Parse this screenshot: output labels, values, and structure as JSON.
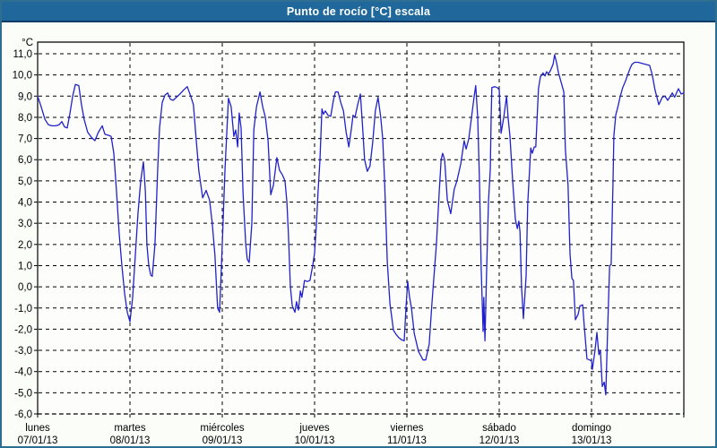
{
  "window": {
    "title": "Punto de rocío [°C] escala"
  },
  "colors": {
    "titlebar_bg": "#20689b",
    "titlebar_edge": "#0d3a66",
    "window_border": "#2e6e91",
    "window_bg": "#fbfdf9",
    "plot_bg": "#fdfefb",
    "grid": "#000000",
    "axis": "#000000",
    "label_text": "#000000",
    "line": "#2121cb"
  },
  "chart_data": {
    "type": "line",
    "title": "Punto de rocío [°C] escala",
    "ylabel": "°C",
    "ylim": [
      -6,
      11
    ],
    "y_tick_step": 1,
    "y_tick_labels": [
      "11,0",
      "10,0",
      "9,0",
      "8,0",
      "7,0",
      "6,0",
      "5,0",
      "4,0",
      "3,0",
      "2,0",
      "1,0",
      "0,0",
      "-1,0",
      "-2,0",
      "-3,0",
      "-4,0",
      "-5,0",
      "-6,0"
    ],
    "x_range_hours": [
      0,
      168
    ],
    "x_day_width_hours": 24,
    "x_days": [
      {
        "name": "lunes",
        "date": "07/01/13"
      },
      {
        "name": "martes",
        "date": "08/01/13"
      },
      {
        "name": "miércoles",
        "date": "09/01/13"
      },
      {
        "name": "jueves",
        "date": "10/01/13"
      },
      {
        "name": "viernes",
        "date": "11/01/13"
      },
      {
        "name": "sábado",
        "date": "12/01/13"
      },
      {
        "name": "domingo",
        "date": "13/01/13"
      }
    ],
    "grid": "dashed",
    "legend": "none",
    "series": [
      {
        "name": "Punto de rocío",
        "units": "°C",
        "points": [
          [
            0,
            9.0
          ],
          [
            0.9,
            8.5
          ],
          [
            1.9,
            7.9
          ],
          [
            2.8,
            7.65
          ],
          [
            3.7,
            7.6
          ],
          [
            4.7,
            7.6
          ],
          [
            5.6,
            7.65
          ],
          [
            6.3,
            7.8
          ],
          [
            7.0,
            7.55
          ],
          [
            7.7,
            7.5
          ],
          [
            8.4,
            8.2
          ],
          [
            9.1,
            9.0
          ],
          [
            9.8,
            9.55
          ],
          [
            10.7,
            9.5
          ],
          [
            11.4,
            8.6
          ],
          [
            12.1,
            7.9
          ],
          [
            13.0,
            7.3
          ],
          [
            14.0,
            7.05
          ],
          [
            14.9,
            6.9
          ],
          [
            15.8,
            7.3
          ],
          [
            16.8,
            7.6
          ],
          [
            17.5,
            7.2
          ],
          [
            18.4,
            7.15
          ],
          [
            19.1,
            7.1
          ],
          [
            19.8,
            6.3
          ],
          [
            20.5,
            4.5
          ],
          [
            21.2,
            2.5
          ],
          [
            21.9,
            1.0
          ],
          [
            22.6,
            -0.3
          ],
          [
            23.3,
            -1.2
          ],
          [
            24.0,
            -1.65
          ],
          [
            24.7,
            -0.5
          ],
          [
            25.4,
            1.5
          ],
          [
            26.1,
            3.5
          ],
          [
            26.8,
            5.0
          ],
          [
            27.5,
            5.9
          ],
          [
            28.0,
            4.5
          ],
          [
            28.4,
            2.0
          ],
          [
            28.9,
            1.0
          ],
          [
            29.4,
            0.55
          ],
          [
            29.8,
            0.5
          ],
          [
            30.5,
            2.0
          ],
          [
            31.2,
            5.5
          ],
          [
            31.7,
            7.5
          ],
          [
            32.4,
            8.7
          ],
          [
            33.1,
            9.05
          ],
          [
            33.8,
            9.15
          ],
          [
            34.5,
            8.85
          ],
          [
            35.2,
            8.8
          ],
          [
            36.1,
            8.95
          ],
          [
            37.0,
            9.1
          ],
          [
            38.0,
            9.3
          ],
          [
            38.9,
            9.45
          ],
          [
            39.8,
            9.0
          ],
          [
            40.5,
            8.6
          ],
          [
            41.2,
            7.0
          ],
          [
            41.9,
            5.5
          ],
          [
            42.9,
            4.2
          ],
          [
            43.8,
            4.55
          ],
          [
            44.7,
            4.1
          ],
          [
            45.4,
            3.0
          ],
          [
            46.1,
            1.5
          ],
          [
            46.8,
            -1.0
          ],
          [
            47.3,
            -1.2
          ],
          [
            48.0,
            2.0
          ],
          [
            48.7,
            5.5
          ],
          [
            49.6,
            8.9
          ],
          [
            50.3,
            8.5
          ],
          [
            51.0,
            7.1
          ],
          [
            51.5,
            7.4
          ],
          [
            52.0,
            6.6
          ],
          [
            52.4,
            8.2
          ],
          [
            52.9,
            7.5
          ],
          [
            53.4,
            4.4
          ],
          [
            54.1,
            2.0
          ],
          [
            54.5,
            1.3
          ],
          [
            55.0,
            1.15
          ],
          [
            55.7,
            3.0
          ],
          [
            56.2,
            7.4
          ],
          [
            56.9,
            8.5
          ],
          [
            57.8,
            9.2
          ],
          [
            58.5,
            8.5
          ],
          [
            59.2,
            8.0
          ],
          [
            59.9,
            6.9
          ],
          [
            60.6,
            4.35
          ],
          [
            61.3,
            4.8
          ],
          [
            62.2,
            6.1
          ],
          [
            62.9,
            5.5
          ],
          [
            63.6,
            5.3
          ],
          [
            64.3,
            5.0
          ],
          [
            64.8,
            4.0
          ],
          [
            65.2,
            2.5
          ],
          [
            65.7,
            0.0
          ],
          [
            66.2,
            -0.9
          ],
          [
            66.9,
            -1.2
          ],
          [
            67.3,
            -0.7
          ],
          [
            67.8,
            -1.1
          ],
          [
            68.3,
            -0.2
          ],
          [
            68.7,
            -0.5
          ],
          [
            69.4,
            0.3
          ],
          [
            70.1,
            0.25
          ],
          [
            70.8,
            0.3
          ],
          [
            71.5,
            1.0
          ],
          [
            72.0,
            1.6
          ],
          [
            72.5,
            3.0
          ],
          [
            72.9,
            4.5
          ],
          [
            73.4,
            6.0
          ],
          [
            73.9,
            8.4
          ],
          [
            74.3,
            8.15
          ],
          [
            74.8,
            8.3
          ],
          [
            75.5,
            8.1
          ],
          [
            76.2,
            8.05
          ],
          [
            76.9,
            8.8
          ],
          [
            77.4,
            9.2
          ],
          [
            78.1,
            9.2
          ],
          [
            78.8,
            8.7
          ],
          [
            79.5,
            8.3
          ],
          [
            80.2,
            7.3
          ],
          [
            80.9,
            6.6
          ],
          [
            81.6,
            7.5
          ],
          [
            82.0,
            8.1
          ],
          [
            82.5,
            8.0
          ],
          [
            83.2,
            8.6
          ],
          [
            83.9,
            9.1
          ],
          [
            84.4,
            7.8
          ],
          [
            85.0,
            6.0
          ],
          [
            85.7,
            5.45
          ],
          [
            86.4,
            5.7
          ],
          [
            87.1,
            6.8
          ],
          [
            87.8,
            8.3
          ],
          [
            88.5,
            8.95
          ],
          [
            89.2,
            8.0
          ],
          [
            89.7,
            7.0
          ],
          [
            90.2,
            5.0
          ],
          [
            90.9,
            1.2
          ],
          [
            91.6,
            -0.8
          ],
          [
            92.5,
            -2.05
          ],
          [
            93.2,
            -2.25
          ],
          [
            93.9,
            -2.4
          ],
          [
            94.6,
            -2.5
          ],
          [
            95.3,
            -2.55
          ],
          [
            95.8,
            -0.9
          ],
          [
            96.2,
            0.25
          ],
          [
            96.7,
            -0.5
          ],
          [
            97.2,
            -1.0
          ],
          [
            97.9,
            -2.2
          ],
          [
            99.0,
            -3.05
          ],
          [
            100.2,
            -3.45
          ],
          [
            100.9,
            -3.45
          ],
          [
            101.8,
            -2.7
          ],
          [
            102.5,
            -0.8
          ],
          [
            103.7,
            2.05
          ],
          [
            104.4,
            4.5
          ],
          [
            104.9,
            6.0
          ],
          [
            105.3,
            6.3
          ],
          [
            105.8,
            6.0
          ],
          [
            106.5,
            4.1
          ],
          [
            107.4,
            3.45
          ],
          [
            108.3,
            4.6
          ],
          [
            109.0,
            5.0
          ],
          [
            110.0,
            5.8
          ],
          [
            110.9,
            6.9
          ],
          [
            111.4,
            6.5
          ],
          [
            112.1,
            7.0
          ],
          [
            112.8,
            8.0
          ],
          [
            113.5,
            9.0
          ],
          [
            113.9,
            9.5
          ],
          [
            114.4,
            8.0
          ],
          [
            114.9,
            4.8
          ],
          [
            115.3,
            1.0
          ],
          [
            115.8,
            -2.1
          ],
          [
            116.0,
            -0.5
          ],
          [
            116.3,
            -2.55
          ],
          [
            116.7,
            0.5
          ],
          [
            117.2,
            4.0
          ],
          [
            117.7,
            5.6
          ],
          [
            117.9,
            8.0
          ],
          [
            118.1,
            9.4
          ],
          [
            118.8,
            9.45
          ],
          [
            119.5,
            9.4
          ],
          [
            120.0,
            9.3
          ],
          [
            120.5,
            7.25
          ],
          [
            121.2,
            8.0
          ],
          [
            121.9,
            9.0
          ],
          [
            122.3,
            8.0
          ],
          [
            122.8,
            7.1
          ],
          [
            123.5,
            5.0
          ],
          [
            124.2,
            3.2
          ],
          [
            124.7,
            2.75
          ],
          [
            125.1,
            3.1
          ],
          [
            125.4,
            2.6
          ],
          [
            125.8,
            0.0
          ],
          [
            126.3,
            -1.5
          ],
          [
            127.0,
            0.5
          ],
          [
            127.4,
            3.9
          ],
          [
            128.2,
            6.55
          ],
          [
            128.6,
            6.3
          ],
          [
            129.1,
            6.6
          ],
          [
            129.5,
            6.6
          ],
          [
            130.2,
            9.35
          ],
          [
            130.7,
            9.9
          ],
          [
            131.4,
            10.1
          ],
          [
            131.9,
            9.95
          ],
          [
            132.3,
            10.15
          ],
          [
            132.8,
            10.05
          ],
          [
            133.3,
            10.2
          ],
          [
            134.0,
            10.5
          ],
          [
            134.4,
            10.95
          ],
          [
            134.9,
            10.6
          ],
          [
            135.4,
            10.1
          ],
          [
            135.8,
            9.85
          ],
          [
            136.8,
            9.2
          ],
          [
            137.2,
            6.5
          ],
          [
            137.9,
            4.8
          ],
          [
            138.4,
            1.55
          ],
          [
            138.9,
            0.4
          ],
          [
            139.3,
            0.3
          ],
          [
            139.8,
            -1.55
          ],
          [
            140.5,
            -1.3
          ],
          [
            141.0,
            -0.9
          ],
          [
            141.7,
            -0.85
          ],
          [
            142.1,
            -1.8
          ],
          [
            142.8,
            -3.4
          ],
          [
            143.5,
            -3.45
          ],
          [
            144.0,
            -3.5
          ],
          [
            144.2,
            -3.9
          ],
          [
            144.9,
            -3.0
          ],
          [
            145.4,
            -2.15
          ],
          [
            145.9,
            -3.2
          ],
          [
            146.3,
            -3.0
          ],
          [
            146.8,
            -4.7
          ],
          [
            147.3,
            -4.5
          ],
          [
            147.7,
            -5.1
          ],
          [
            148.2,
            -2.0
          ],
          [
            148.7,
            1.0
          ],
          [
            149.1,
            1.05
          ],
          [
            149.6,
            5.0
          ],
          [
            149.8,
            7.1
          ],
          [
            150.3,
            8.1
          ],
          [
            151.0,
            8.6
          ],
          [
            151.4,
            8.95
          ],
          [
            152.1,
            9.4
          ],
          [
            152.8,
            9.7
          ],
          [
            153.3,
            9.95
          ],
          [
            154.0,
            10.3
          ],
          [
            154.5,
            10.5
          ],
          [
            155.2,
            10.6
          ],
          [
            156.1,
            10.6
          ],
          [
            157.0,
            10.55
          ],
          [
            158.0,
            10.5
          ],
          [
            159.1,
            10.45
          ],
          [
            159.8,
            10.0
          ],
          [
            160.5,
            9.3
          ],
          [
            161.5,
            8.6
          ],
          [
            162.4,
            8.95
          ],
          [
            163.1,
            9.0
          ],
          [
            163.8,
            8.8
          ],
          [
            164.5,
            9.0
          ],
          [
            165.0,
            9.15
          ],
          [
            165.6,
            8.95
          ],
          [
            166.6,
            9.35
          ],
          [
            167.3,
            9.1
          ],
          [
            168.0,
            9.15
          ]
        ]
      }
    ]
  }
}
